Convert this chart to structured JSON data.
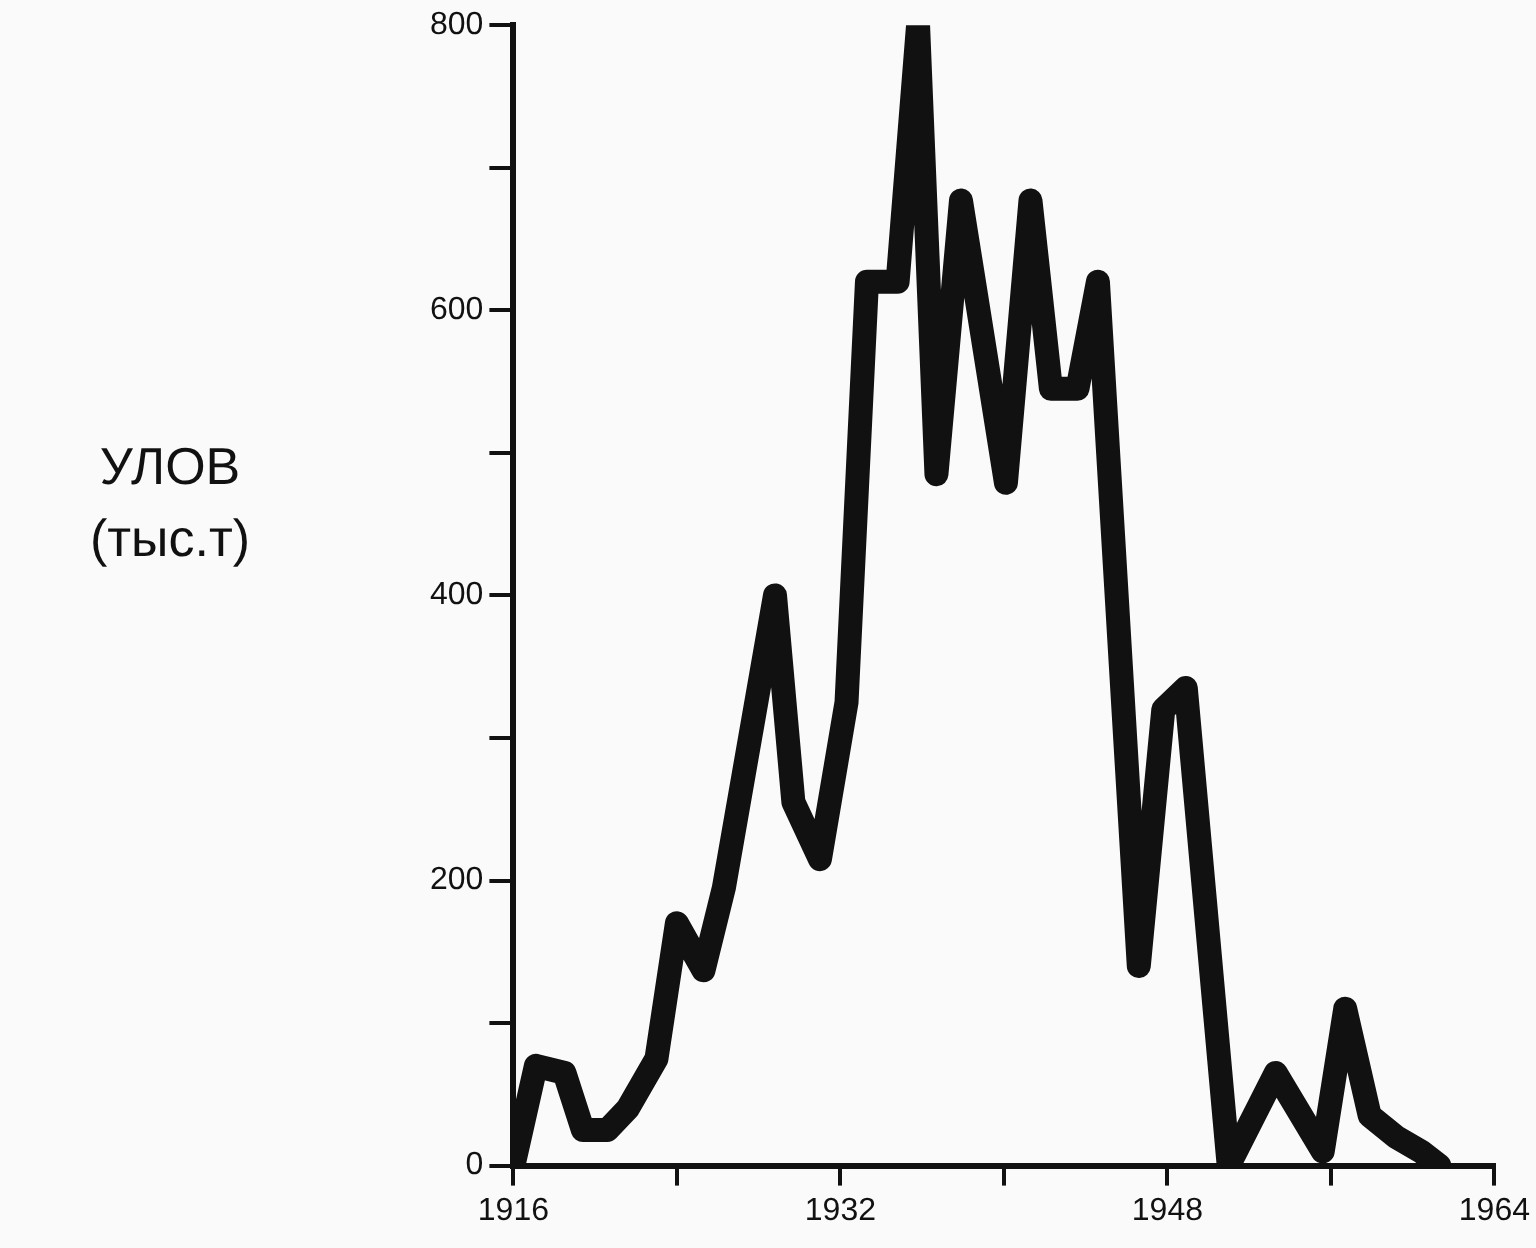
{
  "chart_data": {
    "type": "line",
    "ylabel": "УЛОВ (тыс.т)",
    "x": [
      1916.0,
      1917.1,
      1918.5,
      1919.4,
      1920.6,
      1921.6,
      1923.0,
      1924.0,
      1925.3,
      1926.3,
      1928.8,
      1929.7,
      1931.0,
      1932.3,
      1933.3,
      1934.8,
      1935.8,
      1936.7,
      1937.9,
      1940.1,
      1941.3,
      1942.3,
      1943.6,
      1944.6,
      1946.6,
      1947.8,
      1948.9,
      1951.0,
      1953.3,
      1955.6,
      1956.7,
      1957.9,
      1959.2,
      1960.4,
      1961.3
    ],
    "series": [
      {
        "color": "#111111",
        "values": [
          0,
          70,
          65,
          25,
          25,
          40,
          75,
          170,
          137,
          195,
          400,
          255,
          215,
          325,
          620,
          620,
          800,
          485,
          677,
          479,
          677,
          545,
          545,
          620,
          140,
          320,
          335,
          0,
          65,
          10,
          110,
          35,
          20,
          10,
          0
        ]
      }
    ],
    "xlim": [
      1916,
      1964
    ],
    "xticks": [
      1916,
      {
        "value": 1924,
        "label": null
      },
      1932,
      {
        "value": 1940,
        "label": null
      },
      1948,
      {
        "value": 1956,
        "label": null
      },
      1964
    ],
    "ylim": [
      0,
      800
    ],
    "yticks": [
      0,
      {
        "value": 100,
        "label": null
      },
      200,
      {
        "value": 300,
        "label": null
      },
      400,
      {
        "value": 500,
        "label": null
      },
      600,
      {
        "value": 700,
        "label": null
      },
      800
    ],
    "grid": false,
    "legend": false,
    "marker": "none",
    "line_style": "solid"
  }
}
